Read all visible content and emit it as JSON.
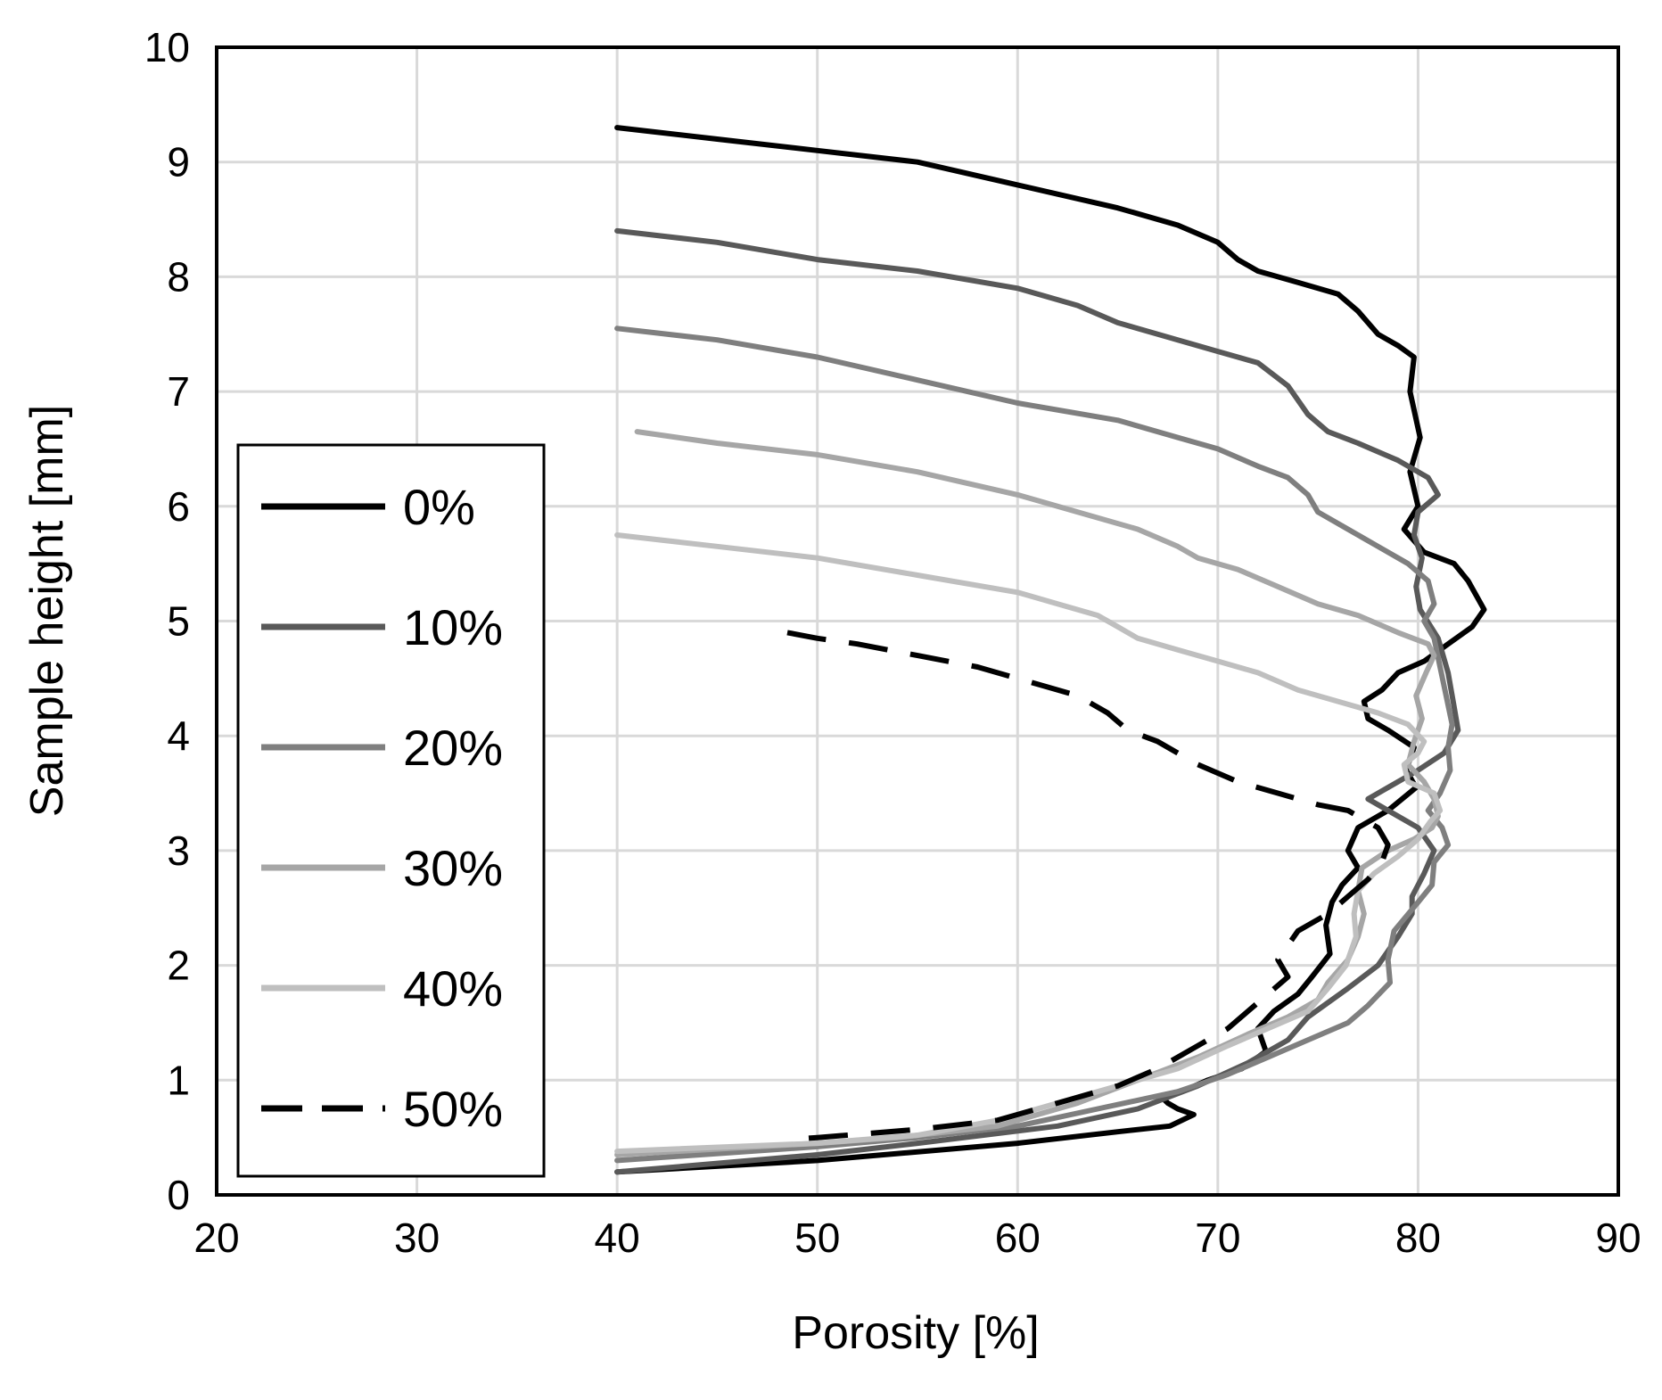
{
  "chart_data": {
    "type": "line",
    "title": "",
    "xlabel": "Porosity [%]",
    "ylabel": "Sample height [mm]",
    "xlim": [
      20,
      90
    ],
    "ylim": [
      0,
      10
    ],
    "xticks": [
      "20",
      "30",
      "40",
      "50",
      "60",
      "70",
      "80",
      "90"
    ],
    "yticks": [
      "0",
      "1",
      "2",
      "3",
      "4",
      "5",
      "6",
      "7",
      "8",
      "9",
      "10"
    ],
    "grid": true,
    "legend_position": "left-center",
    "series": [
      {
        "name": "0%",
        "color": "#000000",
        "dash": false,
        "points": [
          [
            40,
            9.3
          ],
          [
            45,
            9.2
          ],
          [
            50,
            9.1
          ],
          [
            55,
            9.0
          ],
          [
            60,
            8.8
          ],
          [
            65,
            8.6
          ],
          [
            68,
            8.45
          ],
          [
            70,
            8.3
          ],
          [
            71,
            8.15
          ],
          [
            72,
            8.05
          ],
          [
            74,
            7.95
          ],
          [
            76,
            7.85
          ],
          [
            77,
            7.7
          ],
          [
            78,
            7.5
          ],
          [
            79,
            7.4
          ],
          [
            79.8,
            7.3
          ],
          [
            79.6,
            7.0
          ],
          [
            80.1,
            6.6
          ],
          [
            79.6,
            6.3
          ],
          [
            80,
            6.0
          ],
          [
            79.3,
            5.8
          ],
          [
            80.3,
            5.6
          ],
          [
            81.8,
            5.5
          ],
          [
            82.5,
            5.35
          ],
          [
            83.3,
            5.1
          ],
          [
            82.7,
            4.95
          ],
          [
            81.5,
            4.8
          ],
          [
            80.3,
            4.65
          ],
          [
            79,
            4.55
          ],
          [
            78.2,
            4.4
          ],
          [
            77.3,
            4.3
          ],
          [
            77.5,
            4.15
          ],
          [
            78.5,
            4.05
          ],
          [
            79.8,
            3.9
          ],
          [
            79.4,
            3.7
          ],
          [
            79.9,
            3.55
          ],
          [
            78.5,
            3.35
          ],
          [
            77,
            3.2
          ],
          [
            76.5,
            3.0
          ],
          [
            77,
            2.85
          ],
          [
            76.2,
            2.7
          ],
          [
            75.7,
            2.55
          ],
          [
            75.4,
            2.35
          ],
          [
            75.6,
            2.1
          ],
          [
            74.7,
            1.9
          ],
          [
            74,
            1.75
          ],
          [
            72.8,
            1.6
          ],
          [
            72,
            1.45
          ],
          [
            72.4,
            1.25
          ],
          [
            71.2,
            1.1
          ],
          [
            69.5,
            1.0
          ],
          [
            68.2,
            0.9
          ],
          [
            67.2,
            0.85
          ],
          [
            67.5,
            0.8
          ],
          [
            68,
            0.75
          ],
          [
            68.8,
            0.7
          ],
          [
            67.6,
            0.6
          ],
          [
            65,
            0.55
          ],
          [
            60,
            0.45
          ],
          [
            50,
            0.3
          ],
          [
            40,
            0.2
          ]
        ]
      },
      {
        "name": "10%",
        "color": "#595959",
        "dash": false,
        "points": [
          [
            40,
            8.4
          ],
          [
            45,
            8.3
          ],
          [
            50,
            8.15
          ],
          [
            55,
            8.05
          ],
          [
            60,
            7.9
          ],
          [
            63,
            7.75
          ],
          [
            65,
            7.6
          ],
          [
            68,
            7.45
          ],
          [
            70,
            7.35
          ],
          [
            72,
            7.25
          ],
          [
            73.5,
            7.05
          ],
          [
            74.5,
            6.8
          ],
          [
            75.5,
            6.65
          ],
          [
            77,
            6.55
          ],
          [
            79,
            6.4
          ],
          [
            80.5,
            6.25
          ],
          [
            81,
            6.1
          ],
          [
            80,
            5.95
          ],
          [
            79.8,
            5.75
          ],
          [
            80.2,
            5.55
          ],
          [
            79.9,
            5.3
          ],
          [
            80.1,
            5.1
          ],
          [
            81,
            4.85
          ],
          [
            81.5,
            4.55
          ],
          [
            81.8,
            4.25
          ],
          [
            82,
            4.05
          ],
          [
            81.3,
            3.85
          ],
          [
            80,
            3.7
          ],
          [
            78.5,
            3.55
          ],
          [
            77.5,
            3.45
          ],
          [
            78.5,
            3.35
          ],
          [
            80,
            3.2
          ],
          [
            80.8,
            3.0
          ],
          [
            80.3,
            2.8
          ],
          [
            79.7,
            2.6
          ],
          [
            79.7,
            2.45
          ],
          [
            79,
            2.25
          ],
          [
            78,
            2.0
          ],
          [
            76.5,
            1.8
          ],
          [
            74.5,
            1.55
          ],
          [
            73.5,
            1.35
          ],
          [
            71.5,
            1.15
          ],
          [
            69,
            0.95
          ],
          [
            66,
            0.75
          ],
          [
            62,
            0.6
          ],
          [
            55,
            0.45
          ],
          [
            50,
            0.35
          ],
          [
            40,
            0.2
          ]
        ]
      },
      {
        "name": "20%",
        "color": "#7f7f7f",
        "dash": false,
        "points": [
          [
            40,
            7.55
          ],
          [
            45,
            7.45
          ],
          [
            50,
            7.3
          ],
          [
            55,
            7.1
          ],
          [
            60,
            6.9
          ],
          [
            65,
            6.75
          ],
          [
            68,
            6.6
          ],
          [
            70,
            6.5
          ],
          [
            72,
            6.35
          ],
          [
            73.5,
            6.25
          ],
          [
            74.5,
            6.1
          ],
          [
            75,
            5.95
          ],
          [
            76.5,
            5.8
          ],
          [
            78,
            5.65
          ],
          [
            79.5,
            5.5
          ],
          [
            80.5,
            5.35
          ],
          [
            80.8,
            5.15
          ],
          [
            80.3,
            5.0
          ],
          [
            80.8,
            4.85
          ],
          [
            81.1,
            4.6
          ],
          [
            81.4,
            4.35
          ],
          [
            81.7,
            4.1
          ],
          [
            81.5,
            3.9
          ],
          [
            81.6,
            3.7
          ],
          [
            81.1,
            3.5
          ],
          [
            80.5,
            3.35
          ],
          [
            81.2,
            3.2
          ],
          [
            81.5,
            3.05
          ],
          [
            80.8,
            2.9
          ],
          [
            80.7,
            2.7
          ],
          [
            80,
            2.55
          ],
          [
            78.8,
            2.3
          ],
          [
            78.5,
            2.05
          ],
          [
            78.6,
            1.85
          ],
          [
            77.5,
            1.65
          ],
          [
            76.5,
            1.5
          ],
          [
            74.5,
            1.35
          ],
          [
            72.5,
            1.2
          ],
          [
            70.5,
            1.05
          ],
          [
            68,
            0.9
          ],
          [
            64,
            0.75
          ],
          [
            60,
            0.6
          ],
          [
            55,
            0.5
          ],
          [
            50,
            0.42
          ],
          [
            40,
            0.3
          ]
        ]
      },
      {
        "name": "30%",
        "color": "#a6a6a6",
        "dash": false,
        "points": [
          [
            41,
            6.65
          ],
          [
            45,
            6.55
          ],
          [
            50,
            6.45
          ],
          [
            55,
            6.3
          ],
          [
            60,
            6.1
          ],
          [
            63,
            5.95
          ],
          [
            66,
            5.8
          ],
          [
            68,
            5.65
          ],
          [
            69,
            5.55
          ],
          [
            71,
            5.45
          ],
          [
            73,
            5.3
          ],
          [
            75,
            5.15
          ],
          [
            77,
            5.05
          ],
          [
            79,
            4.9
          ],
          [
            80.5,
            4.8
          ],
          [
            80.8,
            4.7
          ],
          [
            80.4,
            4.55
          ],
          [
            79.9,
            4.35
          ],
          [
            80.2,
            4.15
          ],
          [
            79.8,
            3.95
          ],
          [
            79.5,
            3.75
          ],
          [
            80.3,
            3.6
          ],
          [
            80.8,
            3.45
          ],
          [
            81,
            3.3
          ],
          [
            80.7,
            3.2
          ],
          [
            79.8,
            3.1
          ],
          [
            78.5,
            3.0
          ],
          [
            77.2,
            2.85
          ],
          [
            77,
            2.65
          ],
          [
            77.3,
            2.45
          ],
          [
            77,
            2.25
          ],
          [
            76.5,
            2.05
          ],
          [
            75.5,
            1.85
          ],
          [
            75,
            1.7
          ],
          [
            73.5,
            1.55
          ],
          [
            71.5,
            1.4
          ],
          [
            69,
            1.2
          ],
          [
            66,
            1.0
          ],
          [
            63,
            0.8
          ],
          [
            59,
            0.6
          ],
          [
            54,
            0.5
          ],
          [
            50,
            0.45
          ],
          [
            40,
            0.35
          ]
        ]
      },
      {
        "name": "40%",
        "color": "#bfbfbf",
        "dash": false,
        "points": [
          [
            40,
            5.75
          ],
          [
            45,
            5.65
          ],
          [
            50,
            5.55
          ],
          [
            55,
            5.4
          ],
          [
            60,
            5.25
          ],
          [
            62,
            5.15
          ],
          [
            64,
            5.05
          ],
          [
            65,
            4.95
          ],
          [
            66,
            4.85
          ],
          [
            68,
            4.75
          ],
          [
            70,
            4.65
          ],
          [
            72,
            4.55
          ],
          [
            74,
            4.4
          ],
          [
            76,
            4.3
          ],
          [
            78,
            4.2
          ],
          [
            79.5,
            4.1
          ],
          [
            80.3,
            3.95
          ],
          [
            80,
            3.85
          ],
          [
            79.3,
            3.75
          ],
          [
            79.5,
            3.6
          ],
          [
            80.8,
            3.5
          ],
          [
            81.1,
            3.35
          ],
          [
            80.6,
            3.25
          ],
          [
            80,
            3.1
          ],
          [
            79,
            2.95
          ],
          [
            77.8,
            2.8
          ],
          [
            77,
            2.65
          ],
          [
            76.8,
            2.45
          ],
          [
            76.9,
            2.25
          ],
          [
            76.4,
            2.0
          ],
          [
            75.5,
            1.8
          ],
          [
            74.5,
            1.6
          ],
          [
            72.5,
            1.45
          ],
          [
            70.5,
            1.3
          ],
          [
            68,
            1.1
          ],
          [
            65,
            0.95
          ],
          [
            62,
            0.8
          ],
          [
            59,
            0.65
          ],
          [
            55,
            0.52
          ],
          [
            50,
            0.45
          ],
          [
            40,
            0.38
          ]
        ]
      },
      {
        "name": "50%",
        "color": "#000000",
        "dash": true,
        "points": [
          [
            48.5,
            4.9
          ],
          [
            50,
            4.85
          ],
          [
            52,
            4.8
          ],
          [
            55,
            4.7
          ],
          [
            58,
            4.6
          ],
          [
            61,
            4.45
          ],
          [
            63,
            4.35
          ],
          [
            64.5,
            4.2
          ],
          [
            65.5,
            4.05
          ],
          [
            67,
            3.95
          ],
          [
            69,
            3.75
          ],
          [
            71,
            3.6
          ],
          [
            73,
            3.5
          ],
          [
            75,
            3.4
          ],
          [
            76.5,
            3.35
          ],
          [
            78,
            3.2
          ],
          [
            78.5,
            3.05
          ],
          [
            78.2,
            2.9
          ],
          [
            77.5,
            2.75
          ],
          [
            76.5,
            2.6
          ],
          [
            75.5,
            2.45
          ],
          [
            74,
            2.3
          ],
          [
            73,
            2.05
          ],
          [
            73.5,
            1.9
          ],
          [
            72.5,
            1.75
          ],
          [
            71.5,
            1.6
          ],
          [
            70.5,
            1.45
          ],
          [
            69,
            1.3
          ],
          [
            67,
            1.1
          ],
          [
            65,
            0.95
          ],
          [
            62,
            0.8
          ],
          [
            59,
            0.65
          ],
          [
            55,
            0.57
          ],
          [
            50,
            0.5
          ],
          [
            48.5,
            0.48
          ]
        ]
      }
    ]
  }
}
